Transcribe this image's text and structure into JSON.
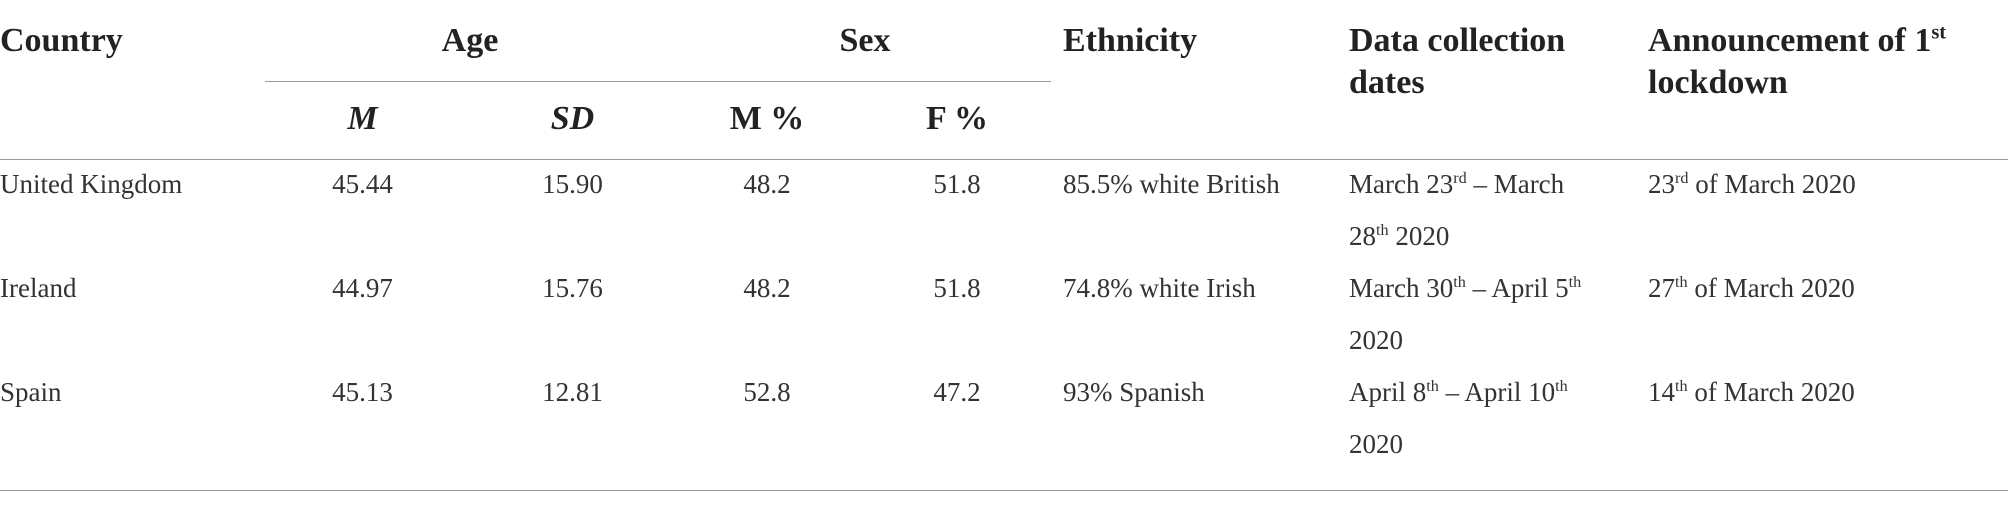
{
  "headers": {
    "country": "Country",
    "age": "Age",
    "sex": "Sex",
    "ethnicity": "Ethnicity",
    "data_collection": "Data collection dates",
    "lockdown_pre": "Announcement of 1",
    "lockdown_sup": "st",
    "lockdown_post": " lockdown",
    "age_mean": "M",
    "age_sd": "SD",
    "sex_male": "M %",
    "sex_female": "F %"
  },
  "rows": [
    {
      "country": "United Kingdom",
      "age_mean": "45.44",
      "age_sd": "15.90",
      "male_pct": "48.2",
      "female_pct": "51.8",
      "ethnicity": "85.5% white British",
      "dates": [
        {
          "t": "March 23"
        },
        {
          "s": "rd"
        },
        {
          "t": " – March 28"
        },
        {
          "s": "th"
        },
        {
          "t": " 2020"
        }
      ],
      "lockdown": [
        {
          "t": "23"
        },
        {
          "s": "rd"
        },
        {
          "t": " of March 2020"
        }
      ]
    },
    {
      "country": "Ireland",
      "age_mean": "44.97",
      "age_sd": "15.76",
      "male_pct": "48.2",
      "female_pct": "51.8",
      "ethnicity": "74.8% white Irish",
      "dates": [
        {
          "t": "March 30"
        },
        {
          "s": "th"
        },
        {
          "t": " – April 5"
        },
        {
          "s": "th"
        },
        {
          "t": " 2020"
        }
      ],
      "lockdown": [
        {
          "t": "27"
        },
        {
          "s": "th"
        },
        {
          "t": " of March 2020"
        }
      ]
    },
    {
      "country": "Spain",
      "age_mean": "45.13",
      "age_sd": "12.81",
      "male_pct": "52.8",
      "female_pct": "47.2",
      "ethnicity": "93% Spanish",
      "dates": [
        {
          "t": "April 8"
        },
        {
          "s": "th"
        },
        {
          "t": " – April 10"
        },
        {
          "s": "th"
        },
        {
          "t": " 2020"
        }
      ],
      "lockdown": [
        {
          "t": "14"
        },
        {
          "s": "th"
        },
        {
          "t": " of March 2020"
        }
      ]
    }
  ]
}
